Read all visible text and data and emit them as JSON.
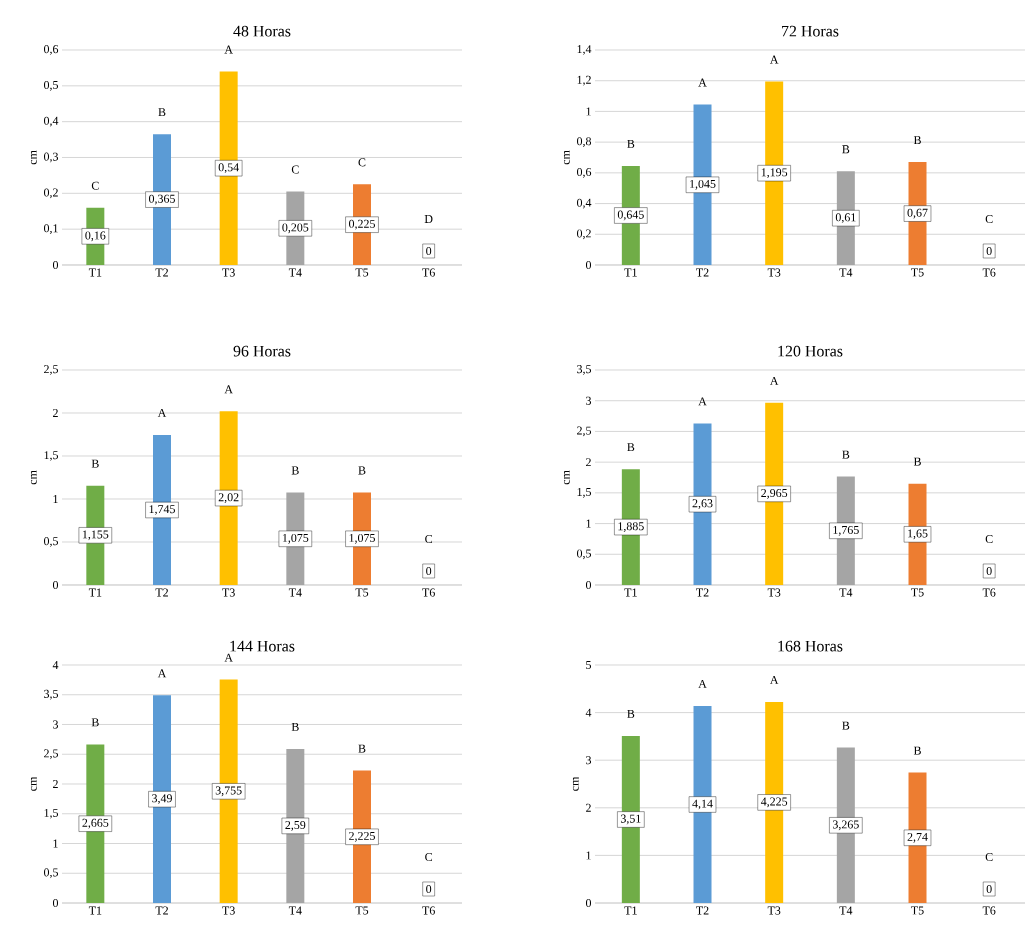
{
  "chart_data": [
    {
      "type": "bar",
      "title": "48  Horas",
      "ylabel": "cm",
      "categories": [
        "T1",
        "T2",
        "T3",
        "T4",
        "T5",
        "T6"
      ],
      "values": [
        0.16,
        0.365,
        0.54,
        0.205,
        0.225,
        0
      ],
      "value_labels": [
        "0,16",
        "0,365",
        "0,54",
        "0,205",
        "0,225",
        "0"
      ],
      "colors": [
        "#70ad47",
        "#5b9bd5",
        "#ffc000",
        "#a5a5a5",
        "#ed7d31",
        "#ed7d31"
      ],
      "ylim": [
        0,
        0.6
      ],
      "yticks": [
        0,
        {
          "value": 0.1,
          "label": "0,1"
        },
        {
          "value": 0.2,
          "label": "0,2"
        },
        {
          "value": 0.3,
          "label": "0,3"
        },
        {
          "value": 0.4,
          "label": "0,4"
        },
        {
          "value": 0.5,
          "label": "0,5"
        },
        {
          "value": 0.6,
          "label": "0,6"
        }
      ],
      "grid": "y",
      "annotations": [
        "C",
        "B",
        "A",
        "C",
        "C",
        "D"
      ]
    },
    {
      "type": "bar",
      "title": "72 Horas",
      "ylabel": "cm",
      "categories": [
        "T1",
        "T2",
        "T3",
        "T4",
        "T5",
        "T6"
      ],
      "values": [
        0.645,
        1.045,
        1.195,
        0.61,
        0.67,
        0
      ],
      "value_labels": [
        "0,645",
        "1,045",
        "1,195",
        "0,61",
        "0,67",
        "0"
      ],
      "colors": [
        "#70ad47",
        "#5b9bd5",
        "#ffc000",
        "#a5a5a5",
        "#ed7d31",
        "#ed7d31"
      ],
      "ylim": [
        0,
        1.4
      ],
      "yticks": [
        0,
        {
          "value": 0.2,
          "label": "0,2"
        },
        {
          "value": 0.4,
          "label": "0,4"
        },
        {
          "value": 0.6,
          "label": "0,6"
        },
        {
          "value": 0.8,
          "label": "0,8"
        },
        1,
        {
          "value": 1.2,
          "label": "1,2"
        },
        {
          "value": 1.4,
          "label": "1,4"
        }
      ],
      "grid": "y",
      "annotations": [
        "B",
        "A",
        "A",
        "B",
        "B",
        "C"
      ]
    },
    {
      "type": "bar",
      "title": "96 Horas",
      "ylabel": "cm",
      "categories": [
        "T1",
        "T2",
        "T3",
        "T4",
        "T5",
        "T6"
      ],
      "values": [
        1.155,
        1.745,
        2.02,
        1.075,
        1.075,
        0
      ],
      "value_labels": [
        "1,155",
        "1,745",
        "2,02",
        "1,075",
        "1,075",
        "0"
      ],
      "colors": [
        "#70ad47",
        "#5b9bd5",
        "#ffc000",
        "#a5a5a5",
        "#ed7d31",
        "#ed7d31"
      ],
      "ylim": [
        0,
        2.5
      ],
      "yticks": [
        0,
        {
          "value": 0.5,
          "label": "0,5"
        },
        1,
        {
          "value": 1.5,
          "label": "1,5"
        },
        2,
        {
          "value": 2.5,
          "label": "2,5"
        }
      ],
      "grid": "y",
      "annotations": [
        "B",
        "A",
        "A",
        "B",
        "B",
        "C"
      ]
    },
    {
      "type": "bar",
      "title": "120 Horas",
      "ylabel": "cm",
      "categories": [
        "T1",
        "T2",
        "T3",
        "T4",
        "T5",
        "T6"
      ],
      "values": [
        1.885,
        2.63,
        2.965,
        1.765,
        1.65,
        0
      ],
      "value_labels": [
        "1,885",
        "2,63",
        "2,965",
        "1,765",
        "1,65",
        "0"
      ],
      "colors": [
        "#70ad47",
        "#5b9bd5",
        "#ffc000",
        "#a5a5a5",
        "#ed7d31",
        "#ed7d31"
      ],
      "ylim": [
        0,
        3.5
      ],
      "yticks": [
        0,
        {
          "value": 0.5,
          "label": "0,5"
        },
        1,
        {
          "value": 1.5,
          "label": "1,5"
        },
        2,
        {
          "value": 2.5,
          "label": "2,5"
        },
        3,
        {
          "value": 3.5,
          "label": "3,5"
        }
      ],
      "grid": "y",
      "annotations": [
        "B",
        "A",
        "A",
        "B",
        "B",
        "C"
      ]
    },
    {
      "type": "bar",
      "title": "144 Horas",
      "ylabel": "cm",
      "categories": [
        "T1",
        "T2",
        "T3",
        "T4",
        "T5",
        "T6"
      ],
      "values": [
        2.665,
        3.49,
        3.755,
        2.59,
        2.225,
        0
      ],
      "value_labels": [
        "2,665",
        "3,49",
        "3,755",
        "2,59",
        "2,225",
        "0"
      ],
      "colors": [
        "#70ad47",
        "#5b9bd5",
        "#ffc000",
        "#a5a5a5",
        "#ed7d31",
        "#ed7d31"
      ],
      "ylim": [
        0,
        4
      ],
      "yticks": [
        0,
        {
          "value": 0.5,
          "label": "0,5"
        },
        1,
        {
          "value": 1.5,
          "label": "1,5"
        },
        2,
        {
          "value": 2.5,
          "label": "2,5"
        },
        3,
        {
          "value": 3.5,
          "label": "3,5"
        },
        4
      ],
      "grid": "y",
      "annotations": [
        "B",
        "A",
        "A",
        "B",
        "B",
        "C"
      ]
    },
    {
      "type": "bar",
      "title": "168 Horas",
      "ylabel": "cm",
      "categories": [
        "T1",
        "T2",
        "T3",
        "T4",
        "T5",
        "T6"
      ],
      "values": [
        3.51,
        4.14,
        4.225,
        3.265,
        2.74,
        0
      ],
      "value_labels": [
        "3,51",
        "4,14",
        "4,225",
        "3,265",
        "2,74",
        "0"
      ],
      "colors": [
        "#70ad47",
        "#5b9bd5",
        "#ffc000",
        "#a5a5a5",
        "#ed7d31",
        "#ed7d31"
      ],
      "ylim": [
        0,
        5
      ],
      "yticks": [
        0,
        1,
        2,
        3,
        4,
        5
      ],
      "grid": "y",
      "annotations": [
        "B",
        "A",
        "A",
        "B",
        "B",
        "C"
      ]
    }
  ]
}
